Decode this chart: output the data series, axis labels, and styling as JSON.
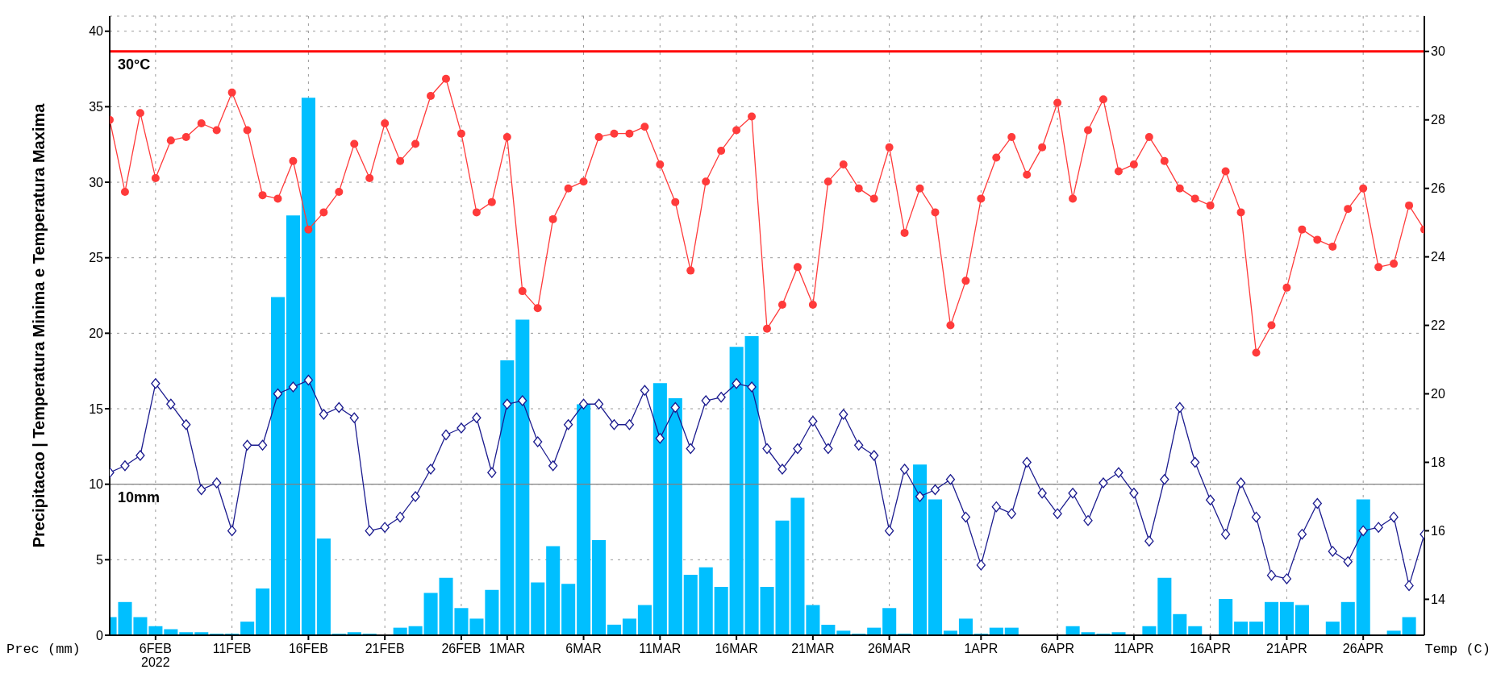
{
  "chart_data": {
    "type": "bar",
    "ylabel": "Precipitacao | Temperatura Minima e Temperatura Maxima",
    "y2label": "Temp (C)",
    "annotations": [
      "Prec (mm)"
    ],
    "categories": [
      null,
      null,
      null,
      "6FEB\n2022",
      null,
      null,
      null,
      null,
      "11FEB",
      null,
      null,
      null,
      null,
      "16FEB",
      null,
      null,
      null,
      null,
      "21FEB",
      null,
      null,
      null,
      null,
      "26FEB",
      null,
      null,
      "1MAR",
      null,
      null,
      null,
      null,
      "6MAR",
      null,
      null,
      null,
      null,
      "11MAR",
      null,
      null,
      null,
      null,
      "16MAR",
      null,
      null,
      null,
      null,
      "21MAR",
      null,
      null,
      null,
      null,
      "26MAR",
      null,
      null,
      null,
      null,
      null,
      "1APR",
      null,
      null,
      null,
      null,
      "6APR",
      null,
      null,
      null,
      null,
      "11APR",
      null,
      null,
      null,
      null,
      "16APR",
      null,
      null,
      null,
      null,
      "21APR",
      null,
      null,
      null,
      null,
      "26APR",
      null,
      null,
      null,
      null
    ],
    "series": [
      {
        "axis": "y",
        "color": "#00bfff",
        "values": [
          1.2,
          2.2,
          1.2,
          0.6,
          0.4,
          0.2,
          0.2,
          0.1,
          0.1,
          0.9,
          3.1,
          22.4,
          27.8,
          35.6,
          6.4,
          0.1,
          0.2,
          0.1,
          0,
          0.5,
          0.6,
          2.8,
          3.8,
          1.8,
          1.1,
          3.0,
          18.2,
          20.9,
          3.5,
          5.9,
          3.4,
          15.3,
          6.3,
          0.7,
          1.1,
          2.0,
          16.7,
          15.7,
          4.0,
          4.5,
          3.2,
          19.1,
          19.8,
          3.2,
          7.6,
          9.1,
          2.0,
          0.7,
          0.3,
          0.1,
          0.5,
          1.8,
          0.1,
          11.3,
          9.0,
          0.3,
          1.1,
          0.1,
          0.5,
          0.5,
          0,
          0,
          0,
          0.6,
          0.2,
          0.1,
          0.2,
          0,
          0.6,
          3.8,
          1.4,
          0.6,
          0,
          2.4,
          0.9,
          0.9,
          2.2,
          2.2,
          2.0,
          0,
          0.9,
          2.2,
          9.0,
          0,
          0.3,
          1.2,
          0
        ]
      },
      {
        "type": "line",
        "axis": "y2",
        "color": "#ff3b3b",
        "marker": "circle",
        "line_style": "solid",
        "values": [
          28.0,
          25.9,
          28.2,
          26.3,
          27.4,
          27.5,
          27.9,
          27.7,
          28.8,
          27.7,
          25.8,
          25.7,
          26.8,
          24.8,
          25.3,
          25.9,
          27.3,
          26.3,
          27.9,
          26.8,
          27.3,
          28.7,
          29.2,
          27.6,
          25.3,
          25.6,
          27.5,
          23.0,
          22.5,
          25.1,
          26.0,
          26.2,
          27.5,
          27.6,
          27.6,
          27.8,
          26.7,
          25.6,
          23.6,
          26.2,
          27.1,
          27.7,
          28.1,
          21.9,
          22.6,
          23.7,
          22.6,
          26.2,
          26.7,
          26.0,
          25.7,
          27.2,
          24.7,
          26.0,
          25.3,
          22.0,
          23.3,
          25.7,
          26.9,
          27.5,
          26.4,
          27.2,
          28.5,
          25.7,
          27.7,
          28.6,
          26.5,
          26.7,
          27.5,
          26.8,
          26.0,
          25.7,
          25.5,
          26.5,
          25.3,
          21.2,
          22.0,
          23.1,
          24.8,
          24.5,
          24.3,
          25.4,
          26.0,
          23.7,
          23.8,
          25.5,
          24.8
        ]
      },
      {
        "type": "line",
        "axis": "y2",
        "color": "#1c1c8f",
        "marker": "diamond",
        "line_style": "solid",
        "values": [
          17.7,
          17.9,
          18.2,
          20.3,
          19.7,
          19.1,
          17.2,
          17.4,
          16.0,
          18.5,
          18.5,
          20.0,
          20.2,
          20.4,
          19.4,
          19.6,
          19.3,
          16.0,
          16.1,
          16.4,
          17.0,
          17.8,
          18.8,
          19.0,
          19.3,
          17.7,
          19.7,
          19.8,
          18.6,
          17.9,
          19.1,
          19.7,
          19.7,
          19.1,
          19.1,
          20.1,
          18.7,
          19.6,
          18.4,
          19.8,
          19.9,
          20.3,
          20.2,
          18.4,
          17.8,
          18.4,
          19.2,
          18.4,
          19.4,
          18.5,
          18.2,
          16.0,
          17.8,
          17.0,
          17.2,
          17.5,
          16.4,
          15.0,
          16.7,
          16.5,
          18.0,
          17.1,
          16.5,
          17.1,
          16.3,
          17.4,
          17.7,
          17.1,
          15.7,
          17.5,
          19.6,
          18.0,
          16.9,
          15.9,
          17.4,
          16.4,
          14.7,
          14.6,
          15.9,
          16.8,
          15.4,
          15.1,
          16.0,
          16.1,
          16.4,
          14.4,
          15.9
        ]
      }
    ],
    "ylim": [
      0,
      41
    ],
    "yticks": [
      0,
      5,
      10,
      15,
      20,
      25,
      30,
      35,
      40
    ],
    "y2lim": [
      12.95,
      31.03
    ],
    "y2ticks": [
      14,
      16,
      18,
      20,
      22,
      24,
      26,
      28,
      30
    ],
    "grid": true,
    "ref_lines": [
      {
        "axis": "y",
        "value": 10,
        "label": "10mm",
        "color": "#808080"
      },
      {
        "axis": "y2",
        "value": 30,
        "label": "30°C",
        "color": "#ff0000"
      }
    ]
  }
}
